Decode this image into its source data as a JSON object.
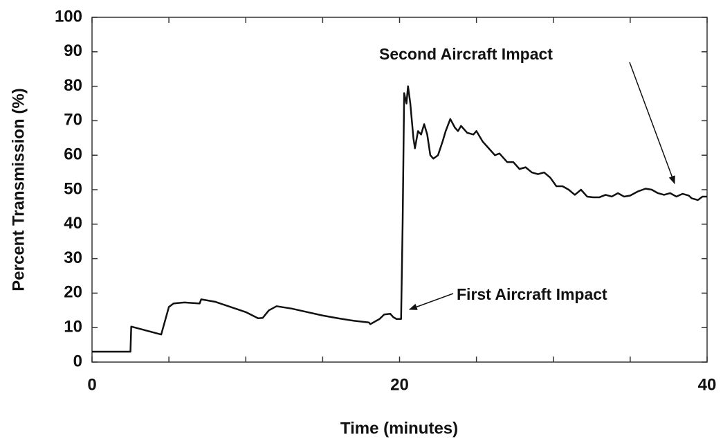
{
  "chart_data": {
    "type": "line",
    "xlabel": "Time (minutes)",
    "ylabel": "Percent Transmission (%)",
    "xlim": [
      0,
      40
    ],
    "ylim": [
      0,
      100
    ],
    "xticks": [
      0,
      20,
      40
    ],
    "xminor": [
      5,
      10,
      15,
      25,
      30,
      35
    ],
    "yticks": [
      0,
      10,
      20,
      30,
      40,
      50,
      60,
      70,
      80,
      90,
      100
    ],
    "annotations": [
      "Second Aircraft Impact",
      "First Aircraft Impact"
    ],
    "series": [
      {
        "color": "#111111",
        "x": [
          0,
          2.5,
          2.55,
          4.5,
          5.0,
          5.3,
          6,
          7,
          7.1,
          8,
          9,
          10,
          10.8,
          11.1,
          11.5,
          12,
          13,
          14,
          15,
          16,
          17,
          18,
          18.1,
          18.7,
          19,
          19.4,
          19.6,
          19.8,
          20.1,
          20.2,
          20.3,
          20.45,
          20.55,
          20.7,
          20.9,
          21,
          21.2,
          21.4,
          21.6,
          21.8,
          22,
          22.2,
          22.5,
          22.8,
          23,
          23.3,
          23.6,
          23.8,
          24,
          24.4,
          24.8,
          25,
          25.4,
          25.8,
          26.2,
          26.5,
          27,
          27.4,
          27.8,
          28.2,
          28.6,
          29,
          29.4,
          29.8,
          30.2,
          30.6,
          31,
          31.4,
          31.8,
          32.2,
          32.6,
          33,
          33.4,
          33.8,
          34.2,
          34.6,
          35,
          35.5,
          36,
          36.4,
          36.8,
          37.2,
          37.6,
          38,
          38.4,
          38.8,
          39,
          39.4,
          39.7,
          40
        ],
        "values": [
          3,
          3,
          10.3,
          8,
          16,
          17,
          17.3,
          17,
          18.2,
          17.5,
          16,
          14.5,
          12.7,
          12.8,
          15,
          16.2,
          15.5,
          14.5,
          13.5,
          12.7,
          12,
          11.5,
          11,
          12.5,
          13.8,
          14,
          13,
          12.5,
          12.5,
          40,
          78,
          75,
          80,
          75,
          65,
          62,
          67,
          66,
          69,
          66,
          60,
          59,
          60,
          64,
          67,
          70.5,
          68,
          67,
          68.5,
          66.5,
          66,
          67,
          64,
          62,
          60,
          60.5,
          58,
          58,
          56,
          56.5,
          55,
          54.5,
          55,
          53.5,
          51,
          51,
          50,
          48.5,
          50,
          48,
          47.8,
          47.8,
          48.5,
          48,
          49,
          48,
          48.3,
          49.5,
          50.3,
          50,
          49,
          48.5,
          49,
          48,
          48.8,
          48.3,
          47.5,
          47,
          48,
          48
        ]
      }
    ]
  }
}
